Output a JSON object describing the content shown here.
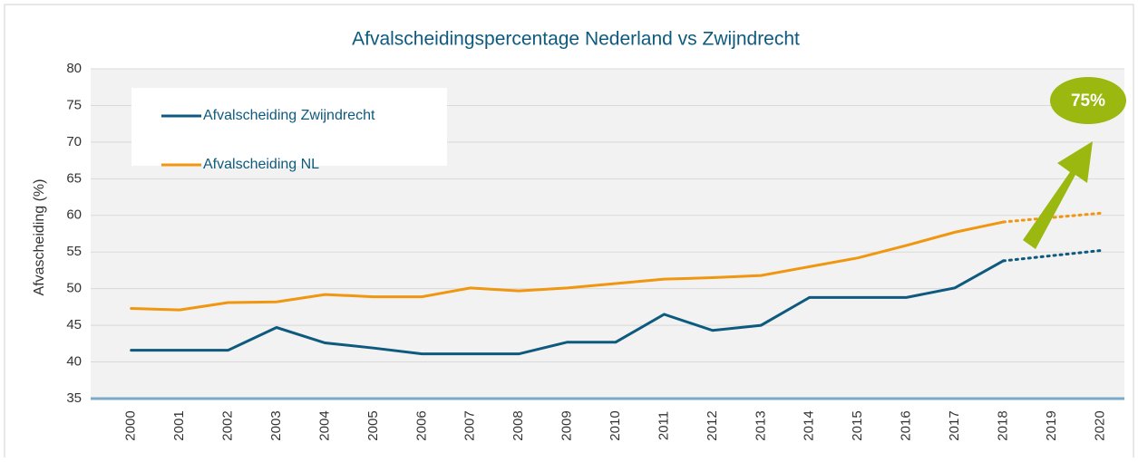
{
  "chart_data": {
    "type": "line",
    "title": "Afvalscheidingspercentage Nederland vs Zwijndrecht",
    "ylabel": "Afvascheiding (%)",
    "categories": [
      "2000",
      "2001",
      "2002",
      "2003",
      "2004",
      "2005",
      "2006",
      "2007",
      "2008",
      "2009",
      "2010",
      "2011",
      "2012",
      "2013",
      "2014",
      "2015",
      "2016",
      "2017",
      "2018",
      "2019",
      "2020"
    ],
    "series": [
      {
        "name": "Afvalscheiding Zwijndrecht",
        "color": "#0e5a7e",
        "dashed_from": 18,
        "values": [
          41.6,
          41.6,
          41.6,
          44.7,
          42.6,
          41.9,
          41.1,
          41.1,
          41.1,
          42.7,
          42.7,
          46.5,
          44.3,
          45.0,
          48.8,
          48.8,
          48.8,
          50.1,
          53.8,
          54.5,
          55.2
        ]
      },
      {
        "name": "Afvalscheiding NL",
        "color": "#f0960f",
        "dashed_from": 18,
        "values": [
          47.3,
          47.1,
          48.1,
          48.2,
          49.2,
          48.9,
          48.9,
          50.1,
          49.7,
          50.1,
          50.7,
          51.3,
          51.5,
          51.8,
          53.0,
          54.2,
          55.9,
          57.7,
          59.1,
          59.7,
          60.3
        ]
      }
    ],
    "annotation": {
      "text": "75%",
      "color": "#9ab80f"
    },
    "ylim": [
      35,
      80
    ],
    "yticks": [
      35,
      40,
      45,
      50,
      55,
      60,
      65,
      70,
      75,
      80
    ],
    "grid": true
  }
}
